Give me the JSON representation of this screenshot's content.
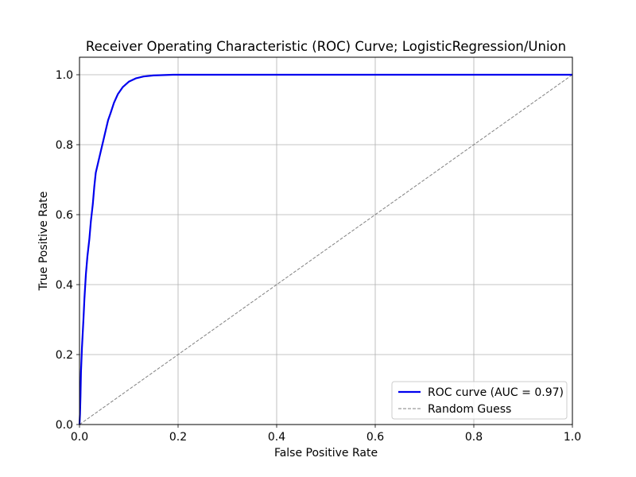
{
  "chart_data": {
    "type": "line",
    "title": "Receiver Operating Characteristic (ROC) Curve; LogisticRegression/Union",
    "xlabel": "False Positive Rate",
    "ylabel": "True Positive Rate",
    "xlim": [
      0.0,
      1.0
    ],
    "ylim": [
      0.0,
      1.05
    ],
    "xticks": [
      "0.0",
      "0.2",
      "0.4",
      "0.6",
      "0.8",
      "1.0"
    ],
    "yticks": [
      "0.0",
      "0.2",
      "0.4",
      "0.6",
      "0.8",
      "1.0"
    ],
    "grid": true,
    "legend_position": "lower-right",
    "series": [
      {
        "name": "ROC curve (AUC = 0.97)",
        "color": "#0000ee",
        "style": "solid",
        "points": [
          [
            0.0,
            0.0
          ],
          [
            0.001,
            0.03
          ],
          [
            0.002,
            0.08
          ],
          [
            0.003,
            0.15
          ],
          [
            0.005,
            0.22
          ],
          [
            0.008,
            0.3
          ],
          [
            0.01,
            0.36
          ],
          [
            0.013,
            0.43
          ],
          [
            0.016,
            0.48
          ],
          [
            0.02,
            0.53
          ],
          [
            0.023,
            0.58
          ],
          [
            0.027,
            0.63
          ],
          [
            0.03,
            0.68
          ],
          [
            0.033,
            0.72
          ],
          [
            0.038,
            0.75
          ],
          [
            0.043,
            0.78
          ],
          [
            0.048,
            0.81
          ],
          [
            0.053,
            0.84
          ],
          [
            0.058,
            0.87
          ],
          [
            0.063,
            0.89
          ],
          [
            0.07,
            0.92
          ],
          [
            0.078,
            0.945
          ],
          [
            0.088,
            0.965
          ],
          [
            0.1,
            0.98
          ],
          [
            0.115,
            0.99
          ],
          [
            0.13,
            0.995
          ],
          [
            0.15,
            0.998
          ],
          [
            0.19,
            1.0
          ],
          [
            1.0,
            1.0
          ]
        ]
      },
      {
        "name": "Random Guess",
        "color": "#808080",
        "style": "dashed",
        "points": [
          [
            0.0,
            0.0
          ],
          [
            1.0,
            1.0
          ]
        ]
      }
    ]
  }
}
